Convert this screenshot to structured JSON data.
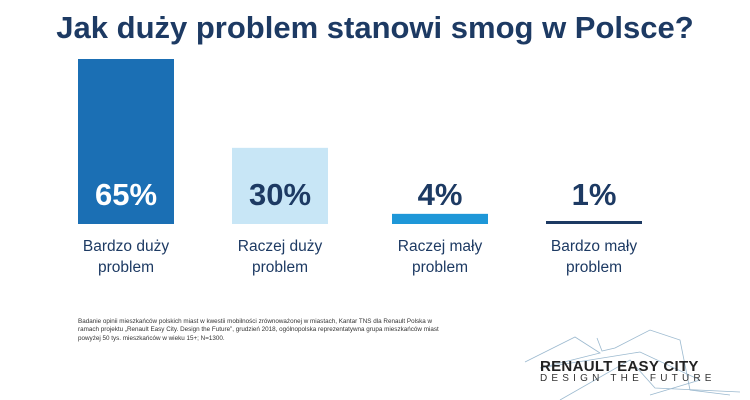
{
  "chart_data": {
    "type": "bar",
    "title": "Jak duży problem stanowi smog w Polsce?",
    "categories": [
      [
        "Bardzo duży",
        "problem"
      ],
      [
        "Raczej duży",
        "problem"
      ],
      [
        "Raczej mały",
        "problem"
      ],
      [
        "Bardzo mały",
        "problem"
      ]
    ],
    "values": [
      65,
      30,
      4,
      1
    ],
    "value_labels": [
      "65%",
      "30%",
      "4%",
      "1%"
    ],
    "colors": [
      "#1b6fb4",
      "#c8e6f6",
      "#1e97d8",
      "#1d3a63"
    ],
    "label_colors": [
      "#ffffff",
      "#1d3a63",
      "#1d3a63",
      "#1d3a63"
    ],
    "ylim": [
      0,
      65
    ],
    "xlabel": "",
    "ylabel": "",
    "grid": false
  },
  "footnote": "Badanie opinii mieszkańców polskich miast w kwestii mobilności zrównoważonej w miastach, Kantar TNS dla Renault Polska w ramach projektu „Renault Easy City. Design the Future”, grudzień 2018, ogólnopolska reprezentatywna grupa mieszkańców miast powyżej 50 tys. mieszkańców w wieku 15+; N=1300.",
  "logo": {
    "line1": "RENAULT EASY CITY",
    "line2": "DESIGN THE FUTURE"
  }
}
